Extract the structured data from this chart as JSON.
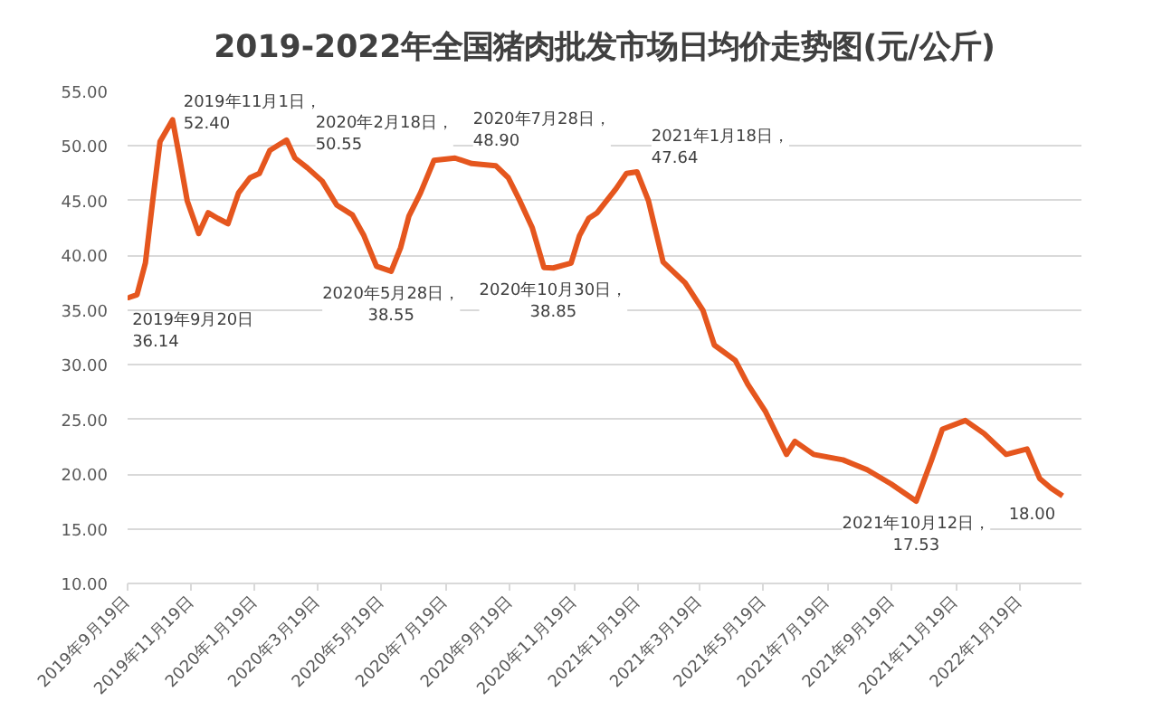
{
  "chart_data": {
    "type": "line",
    "title": "2019-2022年全国猪肉批发市场日均价走势图(元/公斤)",
    "series": [
      {
        "color": "#e5561e",
        "x": [
          "2019-09-19",
          "2019-09-20",
          "2019-09-28",
          "2019-10-06",
          "2019-10-13",
          "2019-10-20",
          "2019-11-01",
          "2019-11-07",
          "2019-11-15",
          "2019-11-26",
          "2019-12-05",
          "2019-12-14",
          "2019-12-24",
          "2020-01-03",
          "2020-01-14",
          "2020-01-23",
          "2020-02-02",
          "2020-02-18",
          "2020-02-26",
          "2020-03-09",
          "2020-03-23",
          "2020-04-06",
          "2020-04-21",
          "2020-05-02",
          "2020-05-14",
          "2020-05-28",
          "2020-06-06",
          "2020-06-14",
          "2020-06-25",
          "2020-07-08",
          "2020-07-28",
          "2020-08-13",
          "2020-09-05",
          "2020-09-17",
          "2020-09-28",
          "2020-10-10",
          "2020-10-21",
          "2020-10-30",
          "2020-11-16",
          "2020-11-24",
          "2020-12-03",
          "2020-12-11",
          "2020-12-29",
          "2021-01-08",
          "2021-01-18",
          "2021-01-29",
          "2021-02-12",
          "2021-03-05",
          "2021-03-22",
          "2021-04-02",
          "2021-04-22",
          "2021-05-04",
          "2021-05-21",
          "2021-06-10",
          "2021-06-18",
          "2021-07-06",
          "2021-08-03",
          "2021-08-26",
          "2021-09-18",
          "2021-10-12",
          "2021-10-26",
          "2021-11-06",
          "2021-11-28",
          "2021-12-16",
          "2022-01-06",
          "2022-01-26",
          "2022-02-07",
          "2022-02-18",
          "2022-03-01"
        ],
        "values": [
          36.3,
          36.14,
          36.4,
          39.3,
          45.0,
          50.4,
          52.4,
          49.3,
          45.0,
          42.0,
          43.9,
          43.4,
          42.9,
          45.7,
          47.1,
          47.5,
          49.6,
          50.55,
          48.9,
          48.0,
          46.8,
          44.6,
          43.7,
          41.8,
          39.0,
          38.55,
          40.7,
          43.6,
          45.7,
          48.7,
          48.9,
          48.4,
          48.2,
          47.1,
          45.0,
          42.5,
          38.9,
          38.85,
          39.3,
          41.8,
          43.4,
          43.9,
          46.1,
          47.5,
          47.64,
          45.0,
          39.4,
          37.5,
          35.0,
          31.8,
          30.4,
          28.2,
          25.7,
          21.8,
          23.0,
          21.8,
          21.3,
          20.4,
          19.1,
          17.53,
          21.1,
          24.1,
          24.9,
          23.7,
          21.8,
          22.3,
          19.6,
          18.7,
          18.0
        ]
      }
    ],
    "xlim": [
      "2019-09-19",
      "2022-03-19"
    ],
    "xticks": [
      {
        "value": "2019-09-19",
        "label": "2019年9月19日"
      },
      {
        "value": "2019-11-19",
        "label": "2019年11月19日"
      },
      {
        "value": "2020-01-19",
        "label": "2020年1月19日"
      },
      {
        "value": "2020-03-19",
        "label": "2020年3月19日"
      },
      {
        "value": "2020-05-19",
        "label": "2020年5月19日"
      },
      {
        "value": "2020-07-19",
        "label": "2020年7月19日"
      },
      {
        "value": "2020-09-19",
        "label": "2020年9月19日"
      },
      {
        "value": "2020-11-19",
        "label": "2020年11月19日"
      },
      {
        "value": "2021-01-19",
        "label": "2021年1月19日"
      },
      {
        "value": "2021-03-19",
        "label": "2021年3月19日"
      },
      {
        "value": "2021-05-19",
        "label": "2021年5月19日"
      },
      {
        "value": "2021-07-19",
        "label": "2021年7月19日"
      },
      {
        "value": "2021-09-19",
        "label": "2021年9月19日"
      },
      {
        "value": "2021-11-19",
        "label": "2021年11月19日"
      },
      {
        "value": "2022-01-19",
        "label": "2022年1月19日"
      }
    ],
    "ylim": [
      10,
      55
    ],
    "yticks": [
      {
        "value": 10,
        "label": "10.00"
      },
      {
        "value": 15,
        "label": "15.00"
      },
      {
        "value": 20,
        "label": "20.00"
      },
      {
        "value": 25,
        "label": "25.00"
      },
      {
        "value": 30,
        "label": "30.00"
      },
      {
        "value": 35,
        "label": "35.00"
      },
      {
        "value": 40,
        "label": "40.00"
      },
      {
        "value": 45,
        "label": "45.00"
      },
      {
        "value": 50,
        "label": "50.00"
      },
      {
        "value": 55,
        "label": "55.00"
      }
    ],
    "grid": "y",
    "marker": "none",
    "line_style": "solid",
    "annotations": [
      {
        "text": "2019年9月20日\n36.14",
        "x": "2019-09-20",
        "y": 36.14
      },
      {
        "text": "2019年11月1日，\n52.40",
        "x": "2019-11-01",
        "y": 52.4
      },
      {
        "text": "2020年2月18日，\n50.55",
        "x": "2020-02-18",
        "y": 50.55
      },
      {
        "text": "2020年5月28日，\n38.55",
        "x": "2020-05-28",
        "y": 38.55
      },
      {
        "text": "2020年7月28日，\n48.90",
        "x": "2020-07-28",
        "y": 48.9
      },
      {
        "text": "2020年10月30日，\n38.85",
        "x": "2020-10-30",
        "y": 38.85
      },
      {
        "text": "2021年1月18日，\n47.64",
        "x": "2021-01-18",
        "y": 47.64
      },
      {
        "text": "2021年10月12日，\n17.53",
        "x": "2021-10-12",
        "y": 17.53
      },
      {
        "text": "18.00",
        "x": "2022-03-01",
        "y": 18.0
      }
    ]
  }
}
